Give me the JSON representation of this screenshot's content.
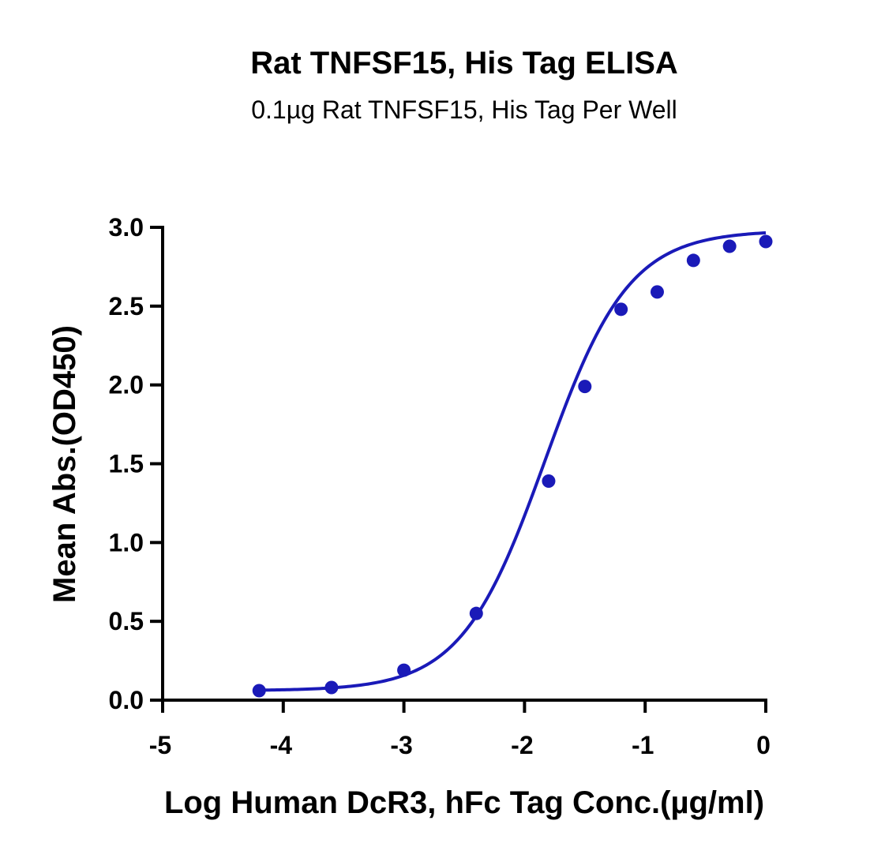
{
  "chart_data": {
    "type": "scatter",
    "title": "Rat TNFSF15, His Tag ELISA",
    "subtitle": "0.1µg Rat TNFSF15, His Tag Per Well",
    "xlabel": "Log Human DcR3, hFc Tag Conc.(µg/ml)",
    "ylabel": "Mean Abs.(OD450)",
    "xlim": [
      -5,
      0
    ],
    "ylim": [
      0,
      3.0
    ],
    "xticks": [
      -5,
      -4,
      -3,
      -2,
      -1,
      0
    ],
    "xtick_labels": [
      "-5",
      "-4",
      "-3",
      "-2",
      "-1",
      "0"
    ],
    "yticks": [
      0,
      0.5,
      1.0,
      1.5,
      2.0,
      2.5,
      3.0
    ],
    "ytick_labels": [
      "0.0",
      "0.5",
      "1.0",
      "1.5",
      "2.0",
      "2.5",
      "3.0"
    ],
    "grid": false,
    "color": "#1a1ab8",
    "series": [
      {
        "x": [
          -4.2,
          -3.6,
          -3.0,
          -2.4,
          -1.8,
          -1.5,
          -1.2,
          -0.9,
          -0.6,
          -0.3,
          0.0
        ],
        "y": [
          0.06,
          0.08,
          0.19,
          0.55,
          1.39,
          1.99,
          2.48,
          2.59,
          2.79,
          2.88,
          2.91
        ],
        "fit": "four-parameter logistic",
        "fit_params": {
          "bottom": 0.06,
          "top": 2.98,
          "log_ec50": -1.83,
          "hill": 1.25
        }
      }
    ]
  }
}
